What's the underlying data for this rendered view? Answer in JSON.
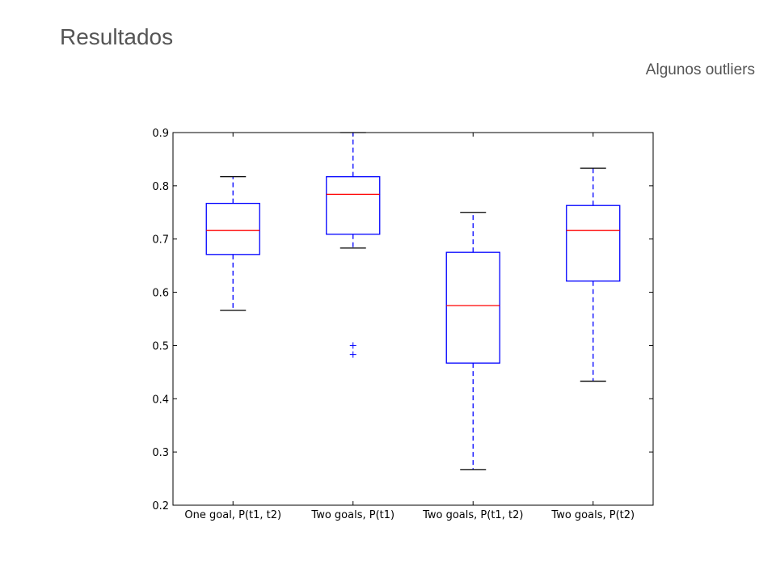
{
  "slide": {
    "title": "Resultados",
    "subtitle": "Algunos outliers"
  },
  "chart_data": {
    "type": "boxplot",
    "ylim": [
      0.2,
      0.9
    ],
    "yticks": [
      "0.2",
      "0.3",
      "0.4",
      "0.5",
      "0.6",
      "0.7",
      "0.8",
      "0.9"
    ],
    "categories": [
      "One goal, P(t1, t2)",
      "Two goals, P(t1)",
      "Two goals, P(t1, t2)",
      "Two goals, P(t2)"
    ],
    "boxes": [
      {
        "whisker_low": 0.566,
        "q1": 0.671,
        "median": 0.716,
        "q3": 0.767,
        "whisker_high": 0.817,
        "outliers": []
      },
      {
        "whisker_low": 0.683,
        "q1": 0.709,
        "median": 0.784,
        "q3": 0.817,
        "whisker_high": 0.9,
        "outliers": [
          0.5,
          0.483
        ]
      },
      {
        "whisker_low": 0.267,
        "q1": 0.467,
        "median": 0.575,
        "q3": 0.675,
        "whisker_high": 0.75,
        "outliers": []
      },
      {
        "whisker_low": 0.433,
        "q1": 0.621,
        "median": 0.716,
        "q3": 0.763,
        "whisker_high": 0.833,
        "outliers": []
      }
    ],
    "colors": {
      "box": "#0000ff",
      "median": "#ff0000",
      "caps": "#000000",
      "outliers": "#0000ff",
      "frame": "#000000"
    },
    "grid": false
  }
}
